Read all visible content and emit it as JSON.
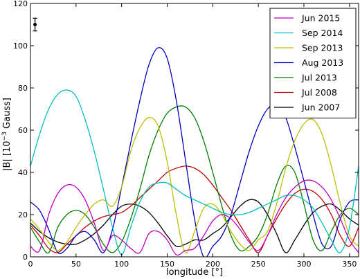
{
  "chart_data": {
    "type": "line",
    "xlabel_main": "longitude [",
    "xlabel_unit": "°",
    "xlabel_end": "]",
    "ylabel_main": "|B| [10",
    "ylabel_exp": "−3",
    "ylabel_end": " Gauss]",
    "xlim": [
      0,
      360
    ],
    "ylim": [
      0,
      120
    ],
    "x_ticks": [
      0,
      50,
      100,
      150,
      200,
      250,
      300,
      350
    ],
    "x_tick_labels": [
      "0",
      "50",
      "100",
      "150",
      "200",
      "250",
      "300",
      "350"
    ],
    "y_ticks": [
      0,
      20,
      40,
      60,
      80,
      100,
      120
    ],
    "y_tick_labels": [
      "0",
      "20",
      "40",
      "60",
      "80",
      "100",
      "120"
    ],
    "grid": false,
    "legend_position": "top-right",
    "error_bar": {
      "x": 5,
      "y": 110,
      "low": 107,
      "high": 113
    },
    "series": [
      {
        "name": "Jun 2015",
        "color": "#bf00bf",
        "x": [
          0,
          10,
          20,
          30,
          40,
          50,
          60,
          70,
          80,
          90,
          100,
          110,
          120,
          130,
          140,
          150,
          160,
          170,
          180,
          190,
          200,
          210,
          220,
          230,
          240,
          250,
          260,
          270,
          280,
          290,
          300,
          310,
          320,
          330,
          340,
          350,
          360
        ],
        "y": [
          5,
          3,
          20,
          30,
          34,
          33,
          27,
          16,
          3,
          10,
          8,
          4,
          2,
          11,
          12,
          8,
          1,
          3,
          4,
          10,
          17,
          20,
          18,
          13,
          7,
          3,
          10,
          20,
          28,
          33,
          36,
          36,
          33,
          27,
          18,
          8,
          2
        ]
      },
      {
        "name": "Sep 2014",
        "color": "#00bfbf",
        "x": [
          0,
          10,
          20,
          30,
          40,
          50,
          60,
          70,
          80,
          90,
          100,
          110,
          120,
          130,
          140,
          150,
          160,
          170,
          180,
          190,
          200,
          210,
          220,
          230,
          240,
          250,
          260,
          270,
          280,
          290,
          300,
          310,
          320,
          330,
          340,
          350,
          360
        ],
        "y": [
          43,
          58,
          70,
          77,
          79,
          76,
          65,
          50,
          32,
          14,
          1,
          14,
          26,
          33,
          35,
          35,
          32,
          29,
          27,
          25,
          23,
          21,
          20,
          20,
          21,
          23,
          25,
          27,
          29,
          29,
          27,
          23,
          16,
          8,
          2,
          14,
          43
        ]
      },
      {
        "name": "Sep 2013",
        "color": "#bfbf00",
        "x": [
          0,
          10,
          20,
          30,
          40,
          50,
          60,
          70,
          80,
          90,
          100,
          110,
          120,
          130,
          140,
          150,
          160,
          170,
          180,
          190,
          200,
          210,
          220,
          230,
          240,
          250,
          260,
          270,
          280,
          290,
          300,
          310,
          320,
          330,
          340,
          350,
          360
        ],
        "y": [
          18,
          13,
          7,
          3,
          7,
          14,
          20,
          25,
          27,
          24,
          33,
          50,
          61,
          66,
          62,
          45,
          20,
          2,
          12,
          23,
          25,
          20,
          12,
          6,
          3,
          8,
          12,
          25,
          42,
          55,
          63,
          65,
          58,
          43,
          25,
          10,
          5
        ]
      },
      {
        "name": "Aug 2013",
        "color": "#0000bf",
        "x": [
          0,
          10,
          20,
          30,
          40,
          50,
          60,
          70,
          80,
          90,
          100,
          110,
          120,
          130,
          140,
          150,
          160,
          170,
          180,
          190,
          200,
          210,
          220,
          230,
          240,
          250,
          260,
          270,
          280,
          290,
          300,
          310,
          320,
          330,
          340,
          350,
          360
        ],
        "y": [
          26,
          22,
          13,
          2,
          4,
          10,
          12,
          8,
          2,
          13,
          33,
          54,
          74,
          91,
          99,
          94,
          74,
          46,
          18,
          0,
          5,
          10,
          20,
          35,
          50,
          62,
          70,
          72,
          66,
          52,
          36,
          20,
          6,
          5,
          18,
          26,
          27
        ]
      },
      {
        "name": "Jul 2013",
        "color": "#007f00",
        "x": [
          0,
          10,
          20,
          30,
          40,
          50,
          60,
          70,
          80,
          90,
          100,
          110,
          120,
          130,
          140,
          150,
          160,
          170,
          180,
          190,
          200,
          210,
          220,
          230,
          240,
          250,
          260,
          270,
          280,
          290,
          300,
          310,
          320,
          330,
          340,
          350,
          360
        ],
        "y": [
          14,
          7,
          2,
          14,
          20,
          22,
          20,
          14,
          6,
          2,
          7,
          18,
          32,
          48,
          60,
          68,
          71,
          71,
          66,
          55,
          40,
          24,
          10,
          3,
          5,
          10,
          20,
          34,
          43,
          40,
          25,
          8,
          3,
          12,
          20,
          23,
          20
        ]
      },
      {
        "name": "Jul 2008",
        "color": "#bf0000",
        "x": [
          0,
          10,
          20,
          30,
          40,
          50,
          60,
          70,
          80,
          90,
          100,
          110,
          120,
          130,
          140,
          150,
          160,
          170,
          180,
          190,
          200,
          210,
          220,
          230,
          240,
          250,
          260,
          270,
          280,
          290,
          300,
          310,
          320,
          330,
          340,
          350,
          360
        ],
        "y": [
          15,
          10,
          4,
          2,
          6,
          10,
          14,
          17,
          19,
          20,
          21,
          24,
          28,
          32,
          36,
          40,
          42,
          43,
          42,
          39,
          34,
          28,
          22,
          15,
          8,
          2,
          10,
          18,
          25,
          30,
          32,
          31,
          27,
          20,
          10,
          5,
          14
        ]
      },
      {
        "name": "Jun 2007",
        "color": "#000000",
        "x": [
          0,
          10,
          20,
          30,
          40,
          50,
          60,
          70,
          80,
          90,
          100,
          110,
          120,
          130,
          140,
          150,
          160,
          170,
          180,
          190,
          200,
          210,
          220,
          230,
          240,
          250,
          260,
          270,
          280,
          290,
          300,
          310,
          320,
          330,
          340,
          350,
          360
        ],
        "y": [
          16,
          12,
          9,
          7,
          6,
          6,
          8,
          11,
          15,
          20,
          24,
          25,
          24,
          21,
          16,
          10,
          5,
          6,
          8,
          8,
          11,
          14,
          19,
          24,
          27,
          26,
          20,
          11,
          2,
          8,
          15,
          21,
          24,
          25,
          22,
          18,
          15
        ]
      }
    ]
  }
}
